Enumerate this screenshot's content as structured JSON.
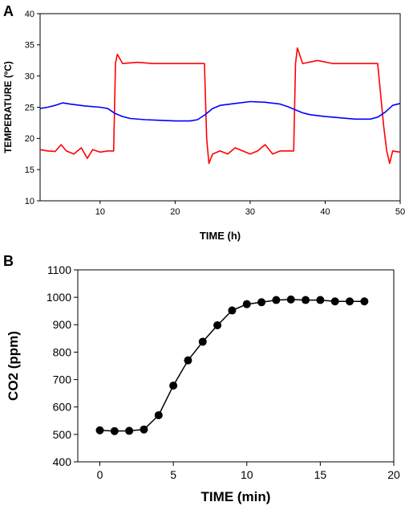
{
  "panels": [
    {
      "letter": "A"
    },
    {
      "letter": "B"
    }
  ],
  "chart_data": [
    {
      "type": "line",
      "xlabel": "TIME (h)",
      "ylabel": "TEMPERATURE (ºC)",
      "xlim": [
        2,
        50
      ],
      "ylim": [
        10,
        40
      ],
      "xticks": [
        10,
        20,
        30,
        40,
        50
      ],
      "yticks": [
        10,
        15,
        20,
        25,
        30,
        35,
        40
      ],
      "grid": false,
      "legend": "none",
      "series": [
        {
          "color": "#ff0000",
          "x": [
            2,
            3,
            4,
            4.8,
            5.5,
            6.5,
            7.5,
            8.3,
            9,
            10,
            11,
            11.8,
            12.05,
            12.3,
            13,
            15,
            17,
            19,
            21,
            23,
            23.9,
            24.2,
            24.5,
            25,
            26,
            27,
            28,
            29,
            30,
            31,
            32,
            33,
            34,
            35,
            35.8,
            36.05,
            36.3,
            37,
            39,
            41,
            43,
            45,
            47,
            47.8,
            48.2,
            48.6,
            49,
            50
          ],
          "y": [
            18.2,
            18.0,
            17.9,
            19.0,
            18.0,
            17.5,
            18.5,
            16.8,
            18.2,
            17.8,
            18.0,
            18.0,
            32.0,
            33.5,
            32.0,
            32.2,
            32.0,
            32.0,
            32.0,
            32.0,
            32.0,
            20.0,
            16.0,
            17.5,
            18.0,
            17.5,
            18.5,
            18.0,
            17.5,
            18.0,
            19.0,
            17.5,
            18.0,
            18.0,
            18.0,
            32.0,
            34.5,
            32.0,
            32.5,
            32.0,
            32.0,
            32.0,
            32.0,
            22.0,
            18.0,
            16.0,
            18.0,
            17.8
          ]
        },
        {
          "color": "#0000ff",
          "x": [
            2,
            3,
            4,
            5,
            6,
            8,
            10,
            11,
            12,
            13,
            14,
            16,
            18,
            20,
            22,
            23,
            24,
            25,
            26,
            28,
            30,
            32,
            34,
            35,
            36,
            37,
            38,
            40,
            42,
            44,
            46,
            47,
            48,
            49,
            50
          ],
          "y": [
            24.8,
            25.0,
            25.3,
            25.7,
            25.5,
            25.2,
            25.0,
            24.8,
            24.0,
            23.5,
            23.2,
            23.0,
            22.9,
            22.8,
            22.8,
            23.0,
            23.8,
            24.8,
            25.3,
            25.6,
            25.9,
            25.8,
            25.5,
            25.1,
            24.6,
            24.1,
            23.8,
            23.5,
            23.3,
            23.1,
            23.1,
            23.4,
            24.2,
            25.3,
            25.6
          ]
        }
      ]
    },
    {
      "type": "scatter",
      "xlabel": "TIME (min)",
      "ylabel": "CO2 (ppm)",
      "xlim": [
        -1.5,
        20
      ],
      "ylim": [
        400,
        1100
      ],
      "xticks": [
        0,
        5,
        10,
        15,
        20
      ],
      "yticks": [
        400,
        500,
        600,
        700,
        800,
        900,
        1000,
        1100
      ],
      "grid": false,
      "legend": "none",
      "connected": true,
      "series": [
        {
          "color": "#000000",
          "x": [
            0,
            1,
            2,
            3,
            4,
            5,
            6,
            7,
            8,
            9,
            10,
            11,
            12,
            13,
            14,
            15,
            16,
            17,
            18
          ],
          "y": [
            515,
            512,
            513,
            518,
            570,
            678,
            770,
            838,
            898,
            952,
            975,
            982,
            990,
            992,
            990,
            990,
            985,
            985,
            985
          ]
        }
      ]
    }
  ]
}
